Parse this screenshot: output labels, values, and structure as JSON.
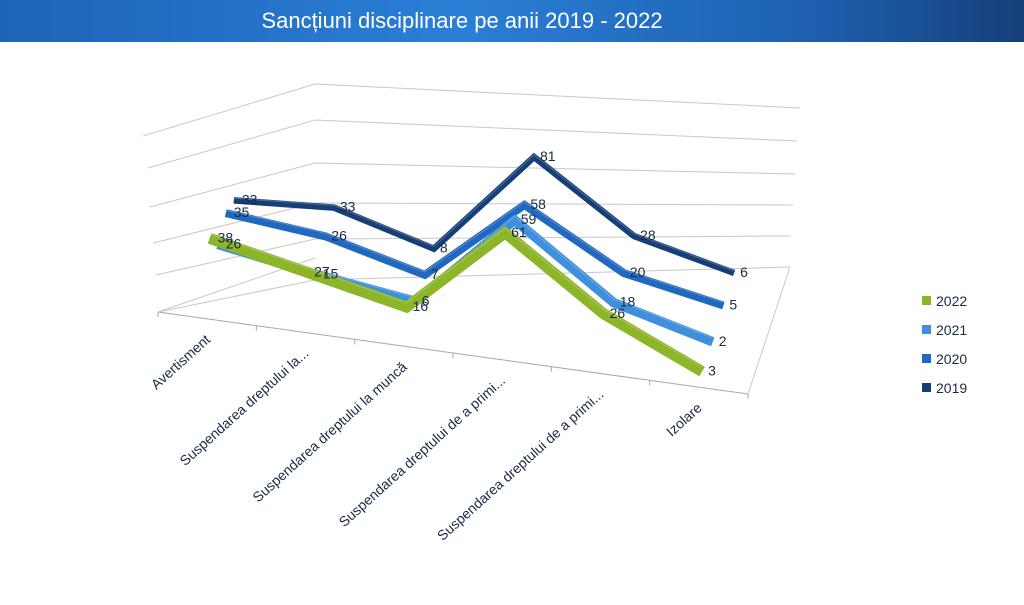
{
  "header": {
    "title": "Sancțiuni disciplinare pe anii 2019 - 2022"
  },
  "chart_data": {
    "type": "line",
    "title": "Sancțiuni disciplinare pe anii 2019 - 2022",
    "categories": [
      "Avertisment",
      "Suspendarea dreptului la...",
      "Suspendarea dreptului la muncă",
      "Suspendarea dreptului de a primi...",
      "Suspendarea dreptului de a primi...",
      "Izolare"
    ],
    "series": [
      {
        "name": "2022",
        "color": "#8db52a",
        "values": [
          38,
          27,
          16,
          61,
          26,
          3
        ]
      },
      {
        "name": "2021",
        "color": "#3f8fdc",
        "values": [
          26,
          15,
          6,
          59,
          18,
          2
        ]
      },
      {
        "name": "2020",
        "color": "#2168bf",
        "values": [
          35,
          26,
          7,
          58,
          20,
          5
        ]
      },
      {
        "name": "2019",
        "color": "#163f78",
        "values": [
          33,
          33,
          8,
          81,
          28,
          6
        ]
      }
    ],
    "legend_position": "right",
    "grid": true,
    "projection": "3d-perspective"
  }
}
